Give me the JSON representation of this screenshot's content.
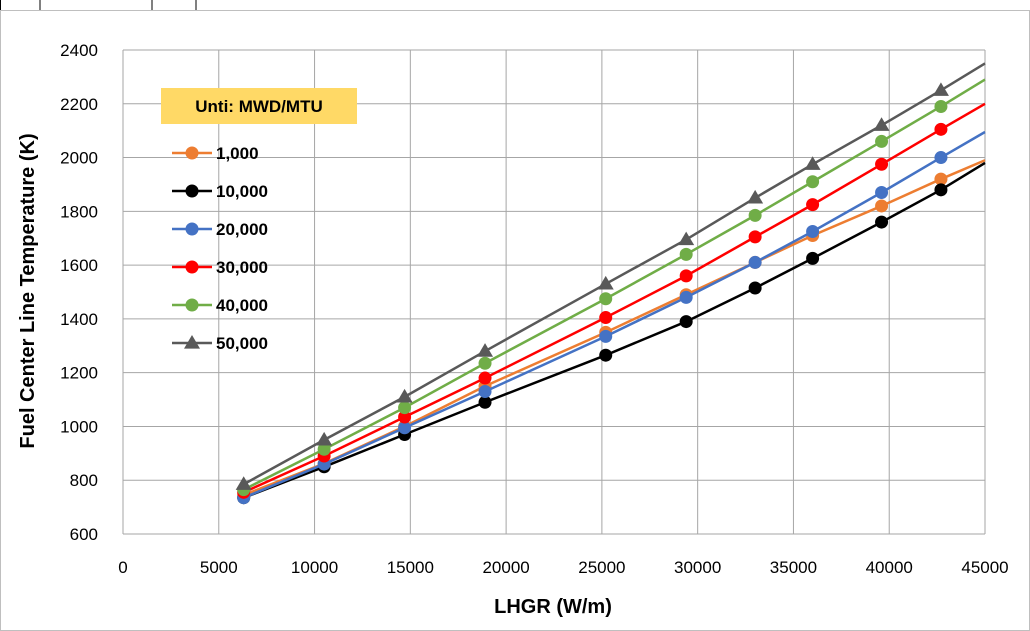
{
  "chart_data": {
    "type": "line",
    "xlabel": "LHGR (W/m)",
    "ylabel": "Fuel Center Line Temperature (K)",
    "xlim": [
      0,
      45000
    ],
    "ylim": [
      600,
      2400
    ],
    "x_ticks": [
      0,
      5000,
      10000,
      15000,
      20000,
      25000,
      30000,
      35000,
      40000,
      45000
    ],
    "y_ticks": [
      600,
      800,
      1000,
      1200,
      1400,
      1600,
      1800,
      2000,
      2200,
      2400
    ],
    "grid": true,
    "legend_title": "Unti: MWD/MTU",
    "legend_title_bg": "#ffd966",
    "legend_position": "top-left",
    "series": [
      {
        "name": "1,000",
        "color": "#ed7d31",
        "marker": "circle",
        "x": [
          6300,
          10500,
          14700,
          18900,
          25200,
          29400,
          33000,
          36000,
          39600,
          42700,
          45000
        ],
        "y": [
          745,
          862,
          1000,
          1150,
          1350,
          1490,
          1610,
          1710,
          1820,
          1920,
          1990
        ]
      },
      {
        "name": "10,000",
        "color": "#000000",
        "marker": "circle",
        "x": [
          6300,
          10500,
          14700,
          18900,
          25200,
          29400,
          33000,
          36000,
          39600,
          42700,
          45000
        ],
        "y": [
          735,
          850,
          970,
          1090,
          1265,
          1390,
          1515,
          1625,
          1760,
          1880,
          1980
        ]
      },
      {
        "name": "20,000",
        "color": "#4472c4",
        "marker": "circle",
        "x": [
          6300,
          10500,
          14700,
          18900,
          25200,
          29400,
          33000,
          36000,
          39600,
          42700,
          45000
        ],
        "y": [
          735,
          860,
          995,
          1130,
          1335,
          1480,
          1610,
          1725,
          1870,
          2000,
          2095
        ]
      },
      {
        "name": "30,000",
        "color": "#ff0000",
        "marker": "circle",
        "x": [
          6300,
          10500,
          14700,
          18900,
          25200,
          29400,
          33000,
          36000,
          39600,
          42700,
          45000
        ],
        "y": [
          755,
          890,
          1035,
          1180,
          1405,
          1560,
          1705,
          1825,
          1975,
          2105,
          2200
        ]
      },
      {
        "name": "40,000",
        "color": "#70ad47",
        "marker": "circle",
        "x": [
          6300,
          10500,
          14700,
          18900,
          25200,
          29400,
          33000,
          36000,
          39600,
          42700,
          45000
        ],
        "y": [
          765,
          915,
          1070,
          1235,
          1475,
          1640,
          1785,
          1910,
          2060,
          2190,
          2290
        ]
      },
      {
        "name": "50,000",
        "color": "#595959",
        "marker": "triangle",
        "x": [
          6300,
          10500,
          14700,
          18900,
          25200,
          29400,
          33000,
          36000,
          39600,
          42700,
          45000
        ],
        "y": [
          785,
          950,
          1110,
          1280,
          1530,
          1695,
          1850,
          1975,
          2120,
          2250,
          2350
        ]
      }
    ]
  }
}
